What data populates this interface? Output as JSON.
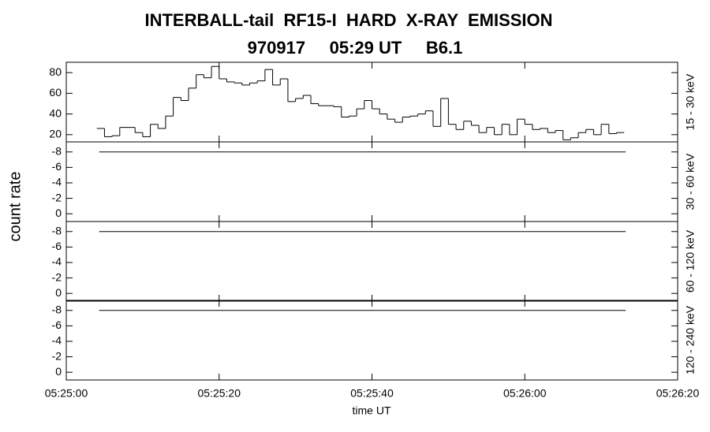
{
  "title": "INTERBALL-tail  RF15-I  HARD  X-RAY  EMISSION",
  "subtitle": "970917     05:29 UT     B6.1",
  "ylabel": "count rate",
  "xlabel": "time UT",
  "chart_data": [
    {
      "type": "histogram",
      "label": "15 - 30 keV",
      "color": "#000000",
      "bins": [
        4,
        5,
        6,
        7,
        8,
        9,
        10,
        11,
        12,
        13,
        14,
        15,
        16,
        17,
        18,
        19,
        20,
        21,
        22,
        23,
        24,
        25,
        26,
        27,
        28,
        29,
        30,
        31,
        32,
        33,
        34,
        35,
        36,
        37,
        38,
        39,
        40,
        41,
        42,
        43,
        44,
        45,
        46,
        47,
        48,
        49,
        50,
        51,
        52,
        53,
        54,
        55,
        56,
        57,
        58,
        59,
        60,
        61,
        62,
        63,
        64,
        65,
        66,
        67,
        68,
        69,
        70,
        71,
        72,
        73
      ],
      "values": [
        26,
        18,
        19,
        27,
        27,
        22,
        18,
        30,
        26,
        38,
        56,
        53,
        65,
        78,
        75,
        86,
        74,
        71,
        70,
        68,
        70,
        72,
        83,
        68,
        74,
        52,
        55,
        58,
        50,
        48,
        48,
        47,
        37,
        38,
        45,
        53,
        45,
        40,
        35,
        32,
        37,
        38,
        40,
        43,
        28,
        55,
        30,
        25,
        33,
        29,
        22,
        27,
        20,
        30,
        20,
        35,
        30,
        25,
        26,
        22,
        24,
        15,
        17,
        22,
        25,
        20,
        30,
        21,
        22
      ],
      "xlim": [
        0,
        80
      ],
      "ylim": [
        13,
        90
      ],
      "yticks": [
        20,
        40,
        60,
        80
      ]
    },
    {
      "type": "histogram",
      "label": "30 - 60 keV",
      "color": "#000000",
      "bins": [
        4.3,
        73.2
      ],
      "values": [
        -8
      ],
      "xlim": [
        0,
        80
      ],
      "ylim": [
        1,
        -9.3
      ],
      "yticks": [
        -8,
        -6,
        -4,
        -2,
        0
      ]
    },
    {
      "type": "histogram",
      "label": "60 - 120 keV",
      "color": "#000000",
      "bins": [
        4.3,
        73.2
      ],
      "values": [
        -8
      ],
      "xlim": [
        0,
        80
      ],
      "ylim": [
        1,
        -9.3
      ],
      "yticks": [
        -8,
        -6,
        -4,
        -2,
        0
      ]
    },
    {
      "type": "histogram",
      "label": "120 - 240 keV",
      "color": "#000000",
      "bins": [
        4.3,
        73.2
      ],
      "values": [
        -8
      ],
      "xlim": [
        0,
        80
      ],
      "ylim": [
        1,
        -9.3
      ],
      "yticks": [
        -8,
        -6,
        -4,
        -2,
        0
      ],
      "xticks": [
        {
          "value": 0,
          "label": "05:25:00"
        },
        {
          "value": 20,
          "label": "05:25:20"
        },
        {
          "value": 40,
          "label": "05:25:40"
        },
        {
          "value": 60,
          "label": "05:26:00"
        },
        {
          "value": 80,
          "label": "05:26:20"
        }
      ]
    }
  ]
}
